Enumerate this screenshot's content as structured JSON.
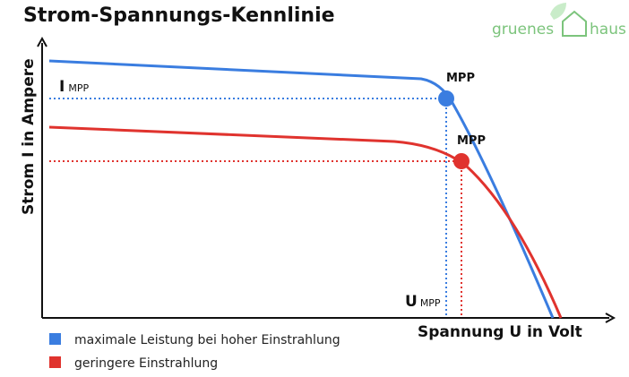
{
  "title": "Strom-Spannungs-Kennlinie",
  "logo": {
    "part1": "gruenes",
    "part2": "haus"
  },
  "axes": {
    "y_label": "Strom I in Ampere",
    "x_label": "Spannung U in Volt"
  },
  "annotations": {
    "i_mpp": {
      "symbol": "I",
      "subscript": "MPP"
    },
    "u_mpp": {
      "symbol": "U",
      "subscript": "MPP"
    },
    "mpp_high": "MPP",
    "mpp_low": "MPP"
  },
  "legend": [
    {
      "label": "maximale Leistung bei hoher Einstrahlung"
    },
    {
      "label": "geringere Einstrahlung"
    }
  ]
}
